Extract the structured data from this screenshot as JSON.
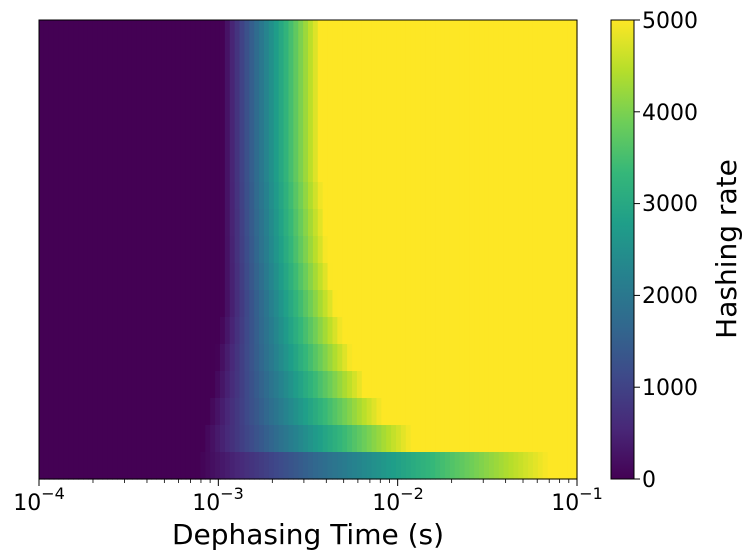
{
  "chart_data": {
    "type": "heatmap",
    "title": "",
    "xlabel": "Dephasing Time (s)",
    "ylabel": "",
    "x_scale": "log",
    "xlim": [
      0.0001,
      0.1
    ],
    "x_tick_values": [
      0.0001,
      0.001,
      0.01,
      0.1
    ],
    "x_tick_labels": [
      {
        "base": "10",
        "exp": "−4"
      },
      {
        "base": "10",
        "exp": "−3"
      },
      {
        "base": "10",
        "exp": "−2"
      },
      {
        "base": "10",
        "exp": "−1"
      }
    ],
    "y_ticks_visible": false,
    "rows_top_to_bottom": [
      {
        "transition_start": 0.00105,
        "transition_end": 0.0037
      },
      {
        "transition_start": 0.00105,
        "transition_end": 0.0037
      },
      {
        "transition_start": 0.00105,
        "transition_end": 0.0037
      },
      {
        "transition_start": 0.00105,
        "transition_end": 0.0037
      },
      {
        "transition_start": 0.00105,
        "transition_end": 0.0037
      },
      {
        "transition_start": 0.00105,
        "transition_end": 0.0037
      },
      {
        "transition_start": 0.00105,
        "transition_end": 0.0038
      },
      {
        "transition_start": 0.00105,
        "transition_end": 0.0039
      },
      {
        "transition_start": 0.00105,
        "transition_end": 0.004
      },
      {
        "transition_start": 0.00105,
        "transition_end": 0.0042
      },
      {
        "transition_start": 0.00105,
        "transition_end": 0.0045
      },
      {
        "transition_start": 0.00102,
        "transition_end": 0.0049
      },
      {
        "transition_start": 0.00098,
        "transition_end": 0.0055
      },
      {
        "transition_start": 0.00094,
        "transition_end": 0.0065
      },
      {
        "transition_start": 0.00088,
        "transition_end": 0.0082
      },
      {
        "transition_start": 0.00082,
        "transition_end": 0.012
      },
      {
        "transition_start": 0.00078,
        "transition_end": 0.07
      }
    ],
    "colorbar": {
      "label": "Hashing rate",
      "min": 0,
      "max": 5000,
      "tick_labels": [
        "0",
        "1000",
        "2000",
        "3000",
        "4000",
        "5000"
      ],
      "tick_values": [
        0,
        1000,
        2000,
        3000,
        4000,
        5000
      ],
      "colormap": "viridis"
    }
  },
  "colors": {
    "viridis_stops": [
      "#440154",
      "#482878",
      "#3e4989",
      "#31688e",
      "#26828e",
      "#1f9e89",
      "#35b779",
      "#6ece58",
      "#b5de2b",
      "#fde725"
    ]
  }
}
